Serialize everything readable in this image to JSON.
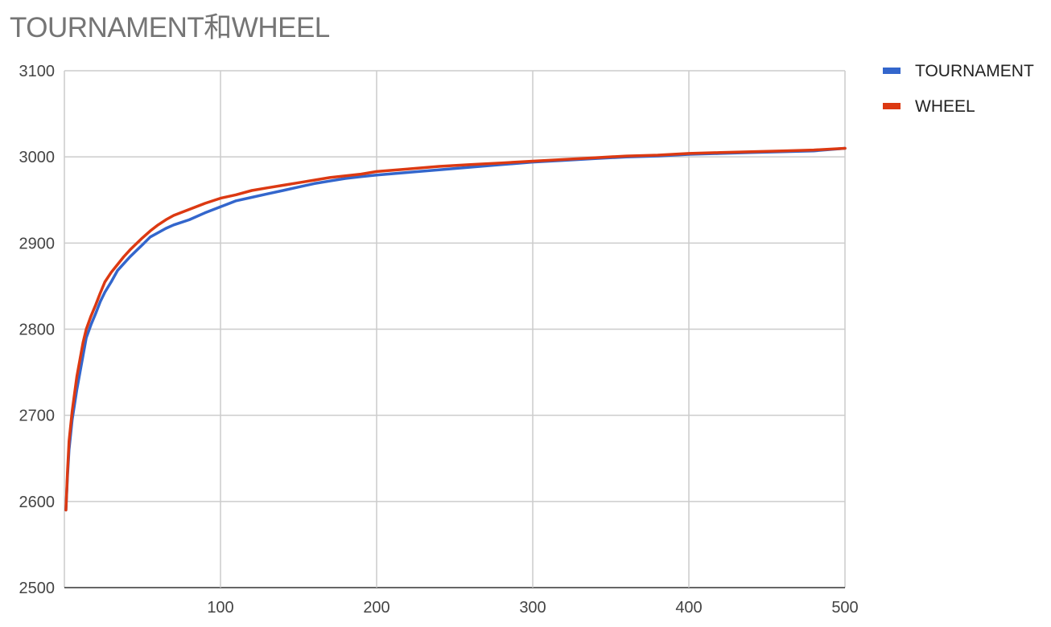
{
  "chart_data": {
    "type": "line",
    "title": "TOURNAMENT和WHEEL",
    "xlim": [
      1,
      500
    ],
    "ylim": [
      2500,
      3100
    ],
    "x_ticks": [
      100,
      200,
      300,
      400,
      500
    ],
    "y_ticks": [
      2500,
      2600,
      2700,
      2800,
      2900,
      3000,
      3100
    ],
    "grid": true,
    "legend_position": "right",
    "series": [
      {
        "name": "TOURNAMENT",
        "color": "#3366cc",
        "points": [
          [
            1,
            2590
          ],
          [
            2,
            2630
          ],
          [
            3,
            2660
          ],
          [
            5,
            2695
          ],
          [
            8,
            2730
          ],
          [
            10,
            2750
          ],
          [
            12,
            2770
          ],
          [
            14,
            2790
          ],
          [
            17,
            2805
          ],
          [
            20,
            2818
          ],
          [
            23,
            2832
          ],
          [
            26,
            2843
          ],
          [
            30,
            2855
          ],
          [
            34,
            2868
          ],
          [
            38,
            2876
          ],
          [
            42,
            2884
          ],
          [
            46,
            2891
          ],
          [
            50,
            2898
          ],
          [
            55,
            2907
          ],
          [
            60,
            2912
          ],
          [
            65,
            2917
          ],
          [
            70,
            2921
          ],
          [
            80,
            2927
          ],
          [
            90,
            2935
          ],
          [
            100,
            2942
          ],
          [
            110,
            2949
          ],
          [
            120,
            2953
          ],
          [
            130,
            2957
          ],
          [
            140,
            2961
          ],
          [
            150,
            2965
          ],
          [
            160,
            2969
          ],
          [
            170,
            2972
          ],
          [
            180,
            2975
          ],
          [
            190,
            2977
          ],
          [
            200,
            2979
          ],
          [
            220,
            2982
          ],
          [
            240,
            2985
          ],
          [
            260,
            2988
          ],
          [
            280,
            2991
          ],
          [
            300,
            2994
          ],
          [
            320,
            2996
          ],
          [
            340,
            2998
          ],
          [
            360,
            3000
          ],
          [
            380,
            3001
          ],
          [
            400,
            3003
          ],
          [
            420,
            3004
          ],
          [
            440,
            3005
          ],
          [
            460,
            3006
          ],
          [
            480,
            3007
          ],
          [
            500,
            3010
          ]
        ]
      },
      {
        "name": "WHEEL",
        "color": "#dc3912",
        "points": [
          [
            1,
            2590
          ],
          [
            2,
            2635
          ],
          [
            3,
            2670
          ],
          [
            5,
            2705
          ],
          [
            8,
            2745
          ],
          [
            10,
            2765
          ],
          [
            12,
            2785
          ],
          [
            14,
            2800
          ],
          [
            17,
            2815
          ],
          [
            20,
            2828
          ],
          [
            23,
            2842
          ],
          [
            26,
            2855
          ],
          [
            30,
            2866
          ],
          [
            34,
            2875
          ],
          [
            38,
            2884
          ],
          [
            42,
            2892
          ],
          [
            46,
            2899
          ],
          [
            50,
            2906
          ],
          [
            55,
            2914
          ],
          [
            60,
            2921
          ],
          [
            65,
            2927
          ],
          [
            70,
            2932
          ],
          [
            80,
            2939
          ],
          [
            90,
            2946
          ],
          [
            100,
            2952
          ],
          [
            110,
            2956
          ],
          [
            120,
            2961
          ],
          [
            130,
            2964
          ],
          [
            140,
            2967
          ],
          [
            150,
            2970
          ],
          [
            160,
            2973
          ],
          [
            170,
            2976
          ],
          [
            180,
            2978
          ],
          [
            190,
            2980
          ],
          [
            200,
            2983
          ],
          [
            220,
            2986
          ],
          [
            240,
            2989
          ],
          [
            260,
            2991
          ],
          [
            280,
            2993
          ],
          [
            300,
            2995
          ],
          [
            320,
            2997
          ],
          [
            340,
            2999
          ],
          [
            360,
            3001
          ],
          [
            380,
            3002
          ],
          [
            400,
            3004
          ],
          [
            420,
            3005
          ],
          [
            440,
            3006
          ],
          [
            460,
            3007
          ],
          [
            480,
            3008
          ],
          [
            500,
            3010
          ]
        ]
      }
    ]
  }
}
